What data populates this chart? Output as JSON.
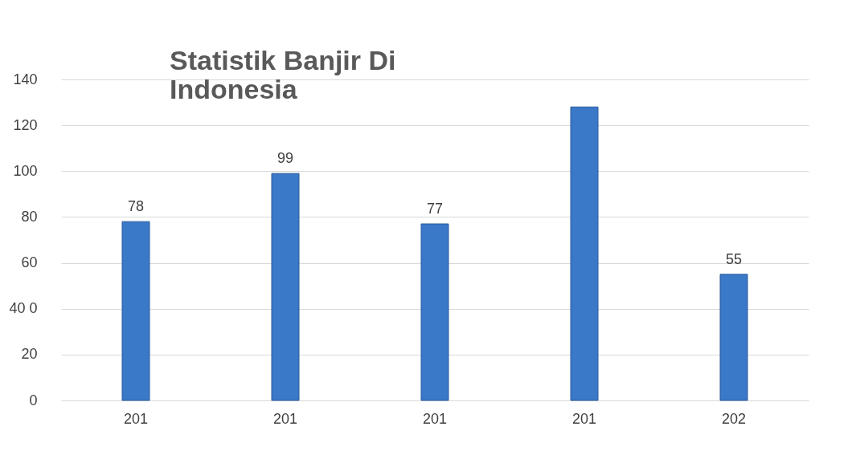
{
  "chart_data": {
    "type": "bar",
    "title": [
      "Statistik Banjir Di",
      "Indonesia"
    ],
    "categories": [
      "201",
      "201",
      "201",
      "201",
      "202"
    ],
    "values": [
      78,
      99,
      77,
      128,
      55
    ],
    "value_labels": [
      "78",
      "99",
      "77",
      null,
      "55"
    ],
    "color": "#3a78c8",
    "ylim": [
      0,
      140
    ],
    "yticks": [
      0,
      20,
      {
        "value": 40,
        "label": "40 0"
      },
      60,
      80,
      100,
      120,
      140
    ],
    "grid": "y"
  }
}
